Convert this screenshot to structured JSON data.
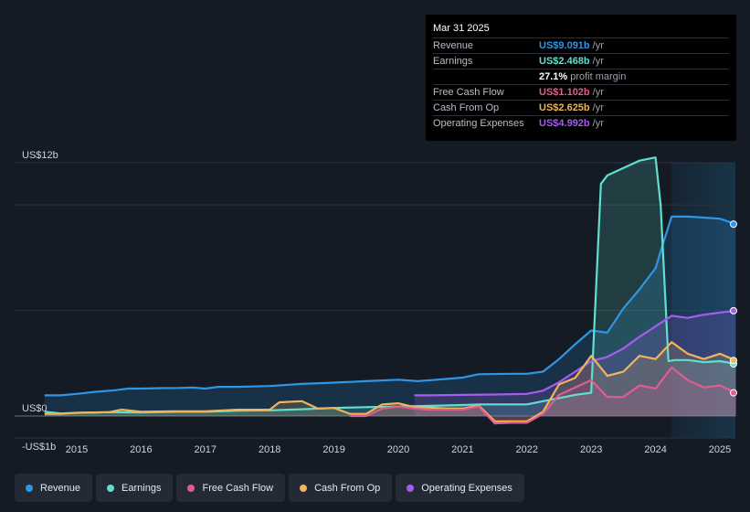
{
  "tooltip": {
    "date": "Mar 31 2025",
    "rows": [
      {
        "label": "Revenue",
        "value": "US$9.091b",
        "unit": "/yr",
        "color": "#2e96e5"
      },
      {
        "label": "Earnings",
        "value": "US$2.468b",
        "unit": "/yr",
        "color": "#5fe0cf"
      },
      {
        "label": "",
        "value": "27.1%",
        "unit": "profit margin",
        "color": "#ffffff"
      },
      {
        "label": "Free Cash Flow",
        "value": "US$1.102b",
        "unit": "/yr",
        "color": "#e05d8f"
      },
      {
        "label": "Cash From Op",
        "value": "US$2.625b",
        "unit": "/yr",
        "color": "#f0b45c"
      },
      {
        "label": "Operating Expenses",
        "value": "US$4.992b",
        "unit": "/yr",
        "color": "#a65cf0"
      }
    ]
  },
  "legend": [
    {
      "label": "Revenue",
      "color": "#2e96e5"
    },
    {
      "label": "Earnings",
      "color": "#5fe0cf"
    },
    {
      "label": "Free Cash Flow",
      "color": "#e05d8f"
    },
    {
      "label": "Cash From Op",
      "color": "#f0b45c"
    },
    {
      "label": "Operating Expenses",
      "color": "#a65cf0"
    }
  ],
  "chart_data": {
    "type": "area",
    "ylim": [
      -1,
      12
    ],
    "y_tick_labels": [
      {
        "value": 12,
        "label": "US$12b"
      },
      {
        "value": 0,
        "label": "US$0"
      },
      {
        "value": -1,
        "label": "-US$1b"
      }
    ],
    "x_tick_labels": [
      "2015",
      "2016",
      "2017",
      "2018",
      "2019",
      "2020",
      "2021",
      "2022",
      "2023",
      "2024",
      "2025"
    ],
    "x_range": [
      2014.3,
      2025.3
    ],
    "highlight_start": 2024.25,
    "series": [
      {
        "name": "Revenue",
        "color": "#2e96e5",
        "points": [
          [
            2014.5,
            0.98
          ],
          [
            2014.75,
            0.98
          ],
          [
            2015,
            1.05
          ],
          [
            2015.3,
            1.15
          ],
          [
            2015.6,
            1.22
          ],
          [
            2015.8,
            1.3
          ],
          [
            2016,
            1.3
          ],
          [
            2016.3,
            1.32
          ],
          [
            2016.6,
            1.33
          ],
          [
            2016.8,
            1.35
          ],
          [
            2017,
            1.3
          ],
          [
            2017.2,
            1.38
          ],
          [
            2017.5,
            1.38
          ],
          [
            2018,
            1.42
          ],
          [
            2018.5,
            1.52
          ],
          [
            2019,
            1.58
          ],
          [
            2019.5,
            1.65
          ],
          [
            2020,
            1.72
          ],
          [
            2020.3,
            1.65
          ],
          [
            2020.6,
            1.72
          ],
          [
            2021,
            1.82
          ],
          [
            2021.25,
            1.98
          ],
          [
            2021.75,
            2.0
          ],
          [
            2022,
            2.0
          ],
          [
            2022.25,
            2.1
          ],
          [
            2022.5,
            2.7
          ],
          [
            2022.75,
            3.4
          ],
          [
            2023,
            4.05
          ],
          [
            2023.25,
            3.95
          ],
          [
            2023.5,
            5.1
          ],
          [
            2023.75,
            6.0
          ],
          [
            2024,
            7.0
          ],
          [
            2024.1,
            8.0
          ],
          [
            2024.25,
            9.45
          ],
          [
            2024.5,
            9.45
          ],
          [
            2024.75,
            9.4
          ],
          [
            2025,
            9.35
          ],
          [
            2025.25,
            9.09
          ]
        ]
      },
      {
        "name": "Earnings",
        "color": "#5fe0cf",
        "points": [
          [
            2014.5,
            0.2
          ],
          [
            2014.75,
            0.12
          ],
          [
            2015,
            0.15
          ],
          [
            2015.5,
            0.18
          ],
          [
            2016,
            0.17
          ],
          [
            2016.5,
            0.2
          ],
          [
            2017,
            0.2
          ],
          [
            2017.5,
            0.25
          ],
          [
            2018,
            0.27
          ],
          [
            2018.5,
            0.32
          ],
          [
            2019,
            0.38
          ],
          [
            2019.5,
            0.42
          ],
          [
            2020,
            0.45
          ],
          [
            2020.5,
            0.48
          ],
          [
            2021,
            0.52
          ],
          [
            2021.25,
            0.55
          ],
          [
            2021.75,
            0.55
          ],
          [
            2022,
            0.55
          ],
          [
            2022.25,
            0.7
          ],
          [
            2022.5,
            0.85
          ],
          [
            2022.75,
            1.0
          ],
          [
            2023,
            1.1
          ],
          [
            2023.15,
            11.0
          ],
          [
            2023.25,
            11.4
          ],
          [
            2023.5,
            11.75
          ],
          [
            2023.75,
            12.1
          ],
          [
            2024,
            12.25
          ],
          [
            2024.08,
            10.0
          ],
          [
            2024.2,
            2.6
          ],
          [
            2024.3,
            2.65
          ],
          [
            2024.5,
            2.65
          ],
          [
            2024.75,
            2.55
          ],
          [
            2025,
            2.6
          ],
          [
            2025.25,
            2.47
          ]
        ]
      },
      {
        "name": "Free Cash Flow",
        "color": "#e05d8f",
        "points": [
          [
            2019.25,
            0.0
          ],
          [
            2019.5,
            0.0
          ],
          [
            2019.75,
            0.35
          ],
          [
            2020,
            0.45
          ],
          [
            2020.25,
            0.35
          ],
          [
            2020.5,
            0.3
          ],
          [
            2020.75,
            0.3
          ],
          [
            2021,
            0.3
          ],
          [
            2021.25,
            0.45
          ],
          [
            2021.5,
            -0.35
          ],
          [
            2021.75,
            -0.32
          ],
          [
            2022,
            -0.32
          ],
          [
            2022.25,
            0.1
          ],
          [
            2022.5,
            1.0
          ],
          [
            2022.75,
            1.35
          ],
          [
            2023,
            1.7
          ],
          [
            2023.25,
            0.9
          ],
          [
            2023.5,
            0.9
          ],
          [
            2023.75,
            1.45
          ],
          [
            2024,
            1.3
          ],
          [
            2024.25,
            2.3
          ],
          [
            2024.5,
            1.7
          ],
          [
            2024.75,
            1.35
          ],
          [
            2025,
            1.45
          ],
          [
            2025.25,
            1.1
          ]
        ]
      },
      {
        "name": "Cash From Op",
        "color": "#f0b45c",
        "points": [
          [
            2014.5,
            0.1
          ],
          [
            2014.75,
            0.1
          ],
          [
            2015,
            0.15
          ],
          [
            2015.5,
            0.18
          ],
          [
            2015.7,
            0.3
          ],
          [
            2016,
            0.2
          ],
          [
            2016.5,
            0.22
          ],
          [
            2017,
            0.22
          ],
          [
            2017.5,
            0.3
          ],
          [
            2018,
            0.3
          ],
          [
            2018.15,
            0.65
          ],
          [
            2018.5,
            0.7
          ],
          [
            2018.75,
            0.35
          ],
          [
            2019,
            0.38
          ],
          [
            2019.25,
            0.1
          ],
          [
            2019.5,
            0.1
          ],
          [
            2019.75,
            0.55
          ],
          [
            2020,
            0.6
          ],
          [
            2020.25,
            0.42
          ],
          [
            2020.5,
            0.4
          ],
          [
            2020.75,
            0.35
          ],
          [
            2021,
            0.35
          ],
          [
            2021.25,
            0.5
          ],
          [
            2021.5,
            -0.25
          ],
          [
            2021.75,
            -0.25
          ],
          [
            2022,
            -0.25
          ],
          [
            2022.25,
            0.2
          ],
          [
            2022.5,
            1.5
          ],
          [
            2022.75,
            1.8
          ],
          [
            2023,
            2.85
          ],
          [
            2023.25,
            1.9
          ],
          [
            2023.5,
            2.1
          ],
          [
            2023.75,
            2.85
          ],
          [
            2024,
            2.7
          ],
          [
            2024.25,
            3.5
          ],
          [
            2024.5,
            2.95
          ],
          [
            2024.75,
            2.7
          ],
          [
            2025,
            2.95
          ],
          [
            2025.25,
            2.63
          ]
        ]
      },
      {
        "name": "Operating Expenses",
        "color": "#a65cf0",
        "points": [
          [
            2020.25,
            0.98
          ],
          [
            2020.5,
            0.98
          ],
          [
            2021,
            1.0
          ],
          [
            2021.5,
            1.02
          ],
          [
            2022,
            1.05
          ],
          [
            2022.25,
            1.2
          ],
          [
            2022.5,
            1.6
          ],
          [
            2022.75,
            2.1
          ],
          [
            2023,
            2.6
          ],
          [
            2023.25,
            2.8
          ],
          [
            2023.5,
            3.2
          ],
          [
            2023.75,
            3.75
          ],
          [
            2024,
            4.25
          ],
          [
            2024.25,
            4.75
          ],
          [
            2024.5,
            4.65
          ],
          [
            2024.75,
            4.8
          ],
          [
            2025,
            4.9
          ],
          [
            2025.25,
            4.99
          ]
        ]
      }
    ]
  }
}
